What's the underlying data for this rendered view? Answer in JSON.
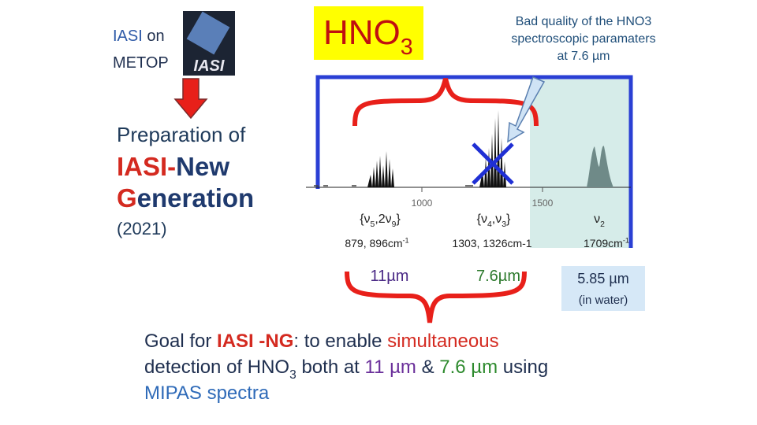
{
  "satellite": {
    "label": [
      {
        "text": "IASI",
        "color": "#2e5aa8"
      },
      {
        "text": " on",
        "color": "#1f2f4f"
      }
    ],
    "platform": "METOP",
    "logo_text": "IASI"
  },
  "badge": {
    "formula": [
      {
        "text": "HNO"
      },
      {
        "text": "3",
        "sub": true
      }
    ]
  },
  "callout": {
    "lines": [
      "Bad quality of the HNO3",
      "spectroscopic paramaters",
      "at 7.6 µm"
    ]
  },
  "left": {
    "intro": "Preparation of",
    "title_line1": [
      {
        "text": "IASI-",
        "color": "#d42a20"
      },
      {
        "text": "New",
        "color": "#1f3a6e"
      }
    ],
    "title_line2": [
      {
        "text": "G",
        "color": "#d42a20"
      },
      {
        "text": "eneration",
        "color": "#1f3a6e"
      }
    ],
    "year": "(2021)"
  },
  "spectrum": {
    "ticks": [
      1000,
      1500
    ]
  },
  "bands": [
    {
      "label": [
        {
          "text": "{ν"
        },
        {
          "text": "5",
          "sub": true
        },
        {
          "text": ",2ν"
        },
        {
          "text": "9",
          "sub": true
        },
        {
          "text": "}"
        }
      ],
      "wavenumber": [
        {
          "text": "879, 896cm"
        },
        {
          "text": "-1",
          "sup": true
        }
      ],
      "wavelength": "11µm",
      "color": "#4b2a86"
    },
    {
      "label": [
        {
          "text": "{ν"
        },
        {
          "text": "4",
          "sub": true
        },
        {
          "text": ",ν"
        },
        {
          "text": "3",
          "sub": true
        },
        {
          "text": "}"
        }
      ],
      "wavenumber": [
        {
          "text": "1303, 1326cm-1"
        }
      ],
      "wavelength": "7.6µm",
      "color": "#2d7a2d"
    },
    {
      "label": [
        {
          "text": "ν"
        },
        {
          "text": "2",
          "sub": true
        }
      ],
      "wavenumber": [
        {
          "text": "1709cm"
        },
        {
          "text": "-1",
          "sup": true
        }
      ],
      "wavelength": "5.85  µm",
      "note": "(in water)",
      "color": "#1f2f4f"
    }
  ],
  "goal": {
    "lines": [
      [
        {
          "text": "Goal for "
        },
        {
          "text": "IASI -NG",
          "color": "#d42a20",
          "bold": true
        },
        {
          "text": ": to enable "
        },
        {
          "text": "simultaneous",
          "color": "#d42a20"
        }
      ],
      [
        {
          "text": "detection of HNO"
        },
        {
          "text": "3",
          "sub": true
        },
        {
          "text": " both at "
        },
        {
          "text": "11 µm",
          "color": "#6a2f9a"
        },
        {
          "text": " & "
        },
        {
          "text": "7.6 µm",
          "color": "#2d8a2d"
        },
        {
          "text": " using"
        }
      ],
      [
        {
          "text": "MIPAS spectra",
          "color": "#2e6ab8"
        }
      ]
    ]
  }
}
